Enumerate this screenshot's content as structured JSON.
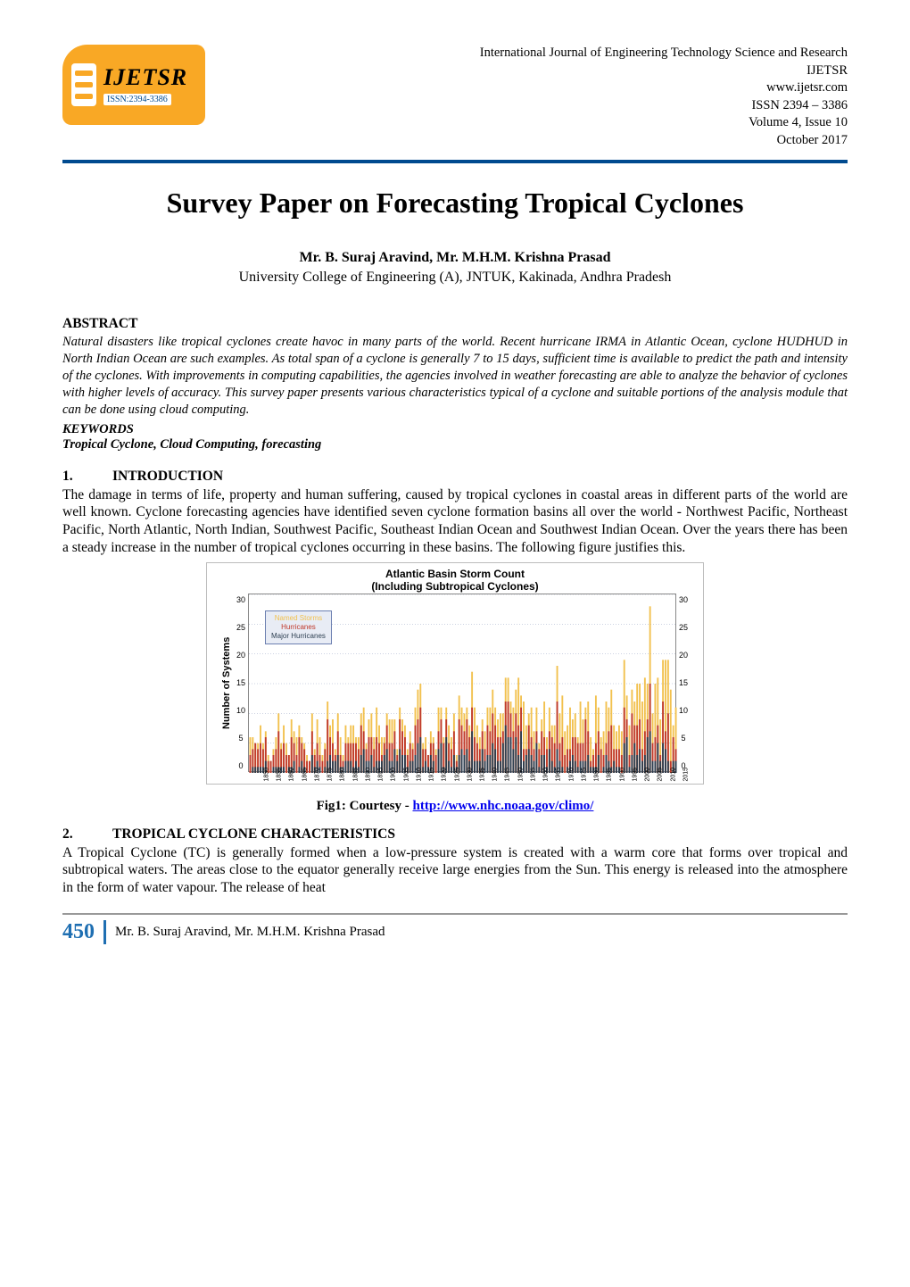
{
  "header": {
    "journal_name": "International Journal of Engineering Technology Science and Research",
    "journal_abbrev": "IJETSR",
    "website": "www.ijetsr.com",
    "issn_line": "ISSN 2394 – 3386",
    "volume_issue": "Volume 4, Issue 10",
    "date": "October 2017",
    "logo_big": "IJETSR",
    "logo_issn": "ISSN:2394-3386"
  },
  "title": "Survey Paper on Forecasting Tropical Cyclones",
  "authors": "Mr. B. Suraj Aravind, Mr. M.H.M. Krishna Prasad",
  "affiliation": "University College of Engineering (A), JNTUK, Kakinada, Andhra Pradesh",
  "abstract_heading": "ABSTRACT",
  "abstract_body": "Natural disasters like tropical cyclones create havoc in many parts of the world.  Recent hurricane IRMA in Atlantic Ocean, cyclone HUDHUD in North Indian Ocean are such examples.  As total span of a cyclone is generally 7 to 15 days, sufficient time is available to predict the path and intensity of the cyclones.  With improvements in computing capabilities, the agencies involved in weather forecasting are able to analyze the behavior of cyclones with higher levels of accuracy.   This survey paper presents various characteristics typical of a cyclone  and suitable portions of the analysis module that can be done using cloud computing.",
  "keywords_label": "KEYWORDS",
  "keywords": "Tropical Cyclone, Cloud Computing, forecasting",
  "section1": {
    "num": "1.",
    "title": "INTRODUCTION",
    "body": "The damage in terms of life, property and human suffering, caused by tropical cyclones in coastal areas in different parts of the world are well known.  Cyclone forecasting agencies have identified seven cyclone formation basins all over the world - Northwest Pacific, Northeast Pacific, North Atlantic, North Indian, Southwest Pacific, Southeast Indian Ocean and Southwest Indian Ocean.  Over the years there has been a steady increase in the number of tropical cyclones occurring in these basins.  The following figure justifies this."
  },
  "figure": {
    "chart_title_line1": "Atlantic Basin Storm Count",
    "chart_title_line2": "(Including Subtropical Cyclones)",
    "ylabel": "Number of Systems",
    "ylim": [
      0,
      30
    ],
    "yticks": [
      0,
      5,
      10,
      15,
      20,
      25,
      30
    ],
    "x_start": 1850,
    "x_end": 2015,
    "x_step": 5,
    "legend": [
      {
        "label": "Named Storms",
        "color": "#f2c14e"
      },
      {
        "label": "Hurricanes",
        "color": "#c0392b"
      },
      {
        "label": "Major Hurricanes",
        "color": "#2c3e50"
      }
    ],
    "background_color": "#ffffff",
    "grid_color": "#9aa7c7",
    "grid_dash": "1 2",
    "bar_width_ratio": 0.65,
    "named_storms": [
      6,
      6,
      5,
      5,
      8,
      5,
      7,
      3,
      2,
      4,
      6,
      10,
      5,
      8,
      5,
      3,
      9,
      7,
      6,
      8,
      6,
      5,
      3,
      2,
      10,
      4,
      9,
      6,
      3,
      5,
      12,
      8,
      9,
      4,
      10,
      6,
      3,
      8,
      6,
      8,
      8,
      6,
      6,
      10,
      11,
      5,
      9,
      10,
      6,
      11,
      8,
      6,
      6,
      10,
      9,
      9,
      9,
      4,
      11,
      9,
      8,
      4,
      7,
      5,
      11,
      14,
      15,
      5,
      6,
      3,
      7,
      6,
      4,
      11,
      11,
      6,
      11,
      8,
      6,
      10,
      3,
      13,
      11,
      10,
      11,
      8,
      17,
      11,
      8,
      6,
      9,
      7,
      11,
      11,
      14,
      11,
      9,
      10,
      10,
      16,
      16,
      12,
      11,
      14,
      16,
      13,
      12,
      8,
      10,
      11,
      7,
      11,
      5,
      9,
      12,
      6,
      11,
      8,
      8,
      18,
      10,
      13,
      7,
      8,
      11,
      9,
      10,
      6,
      12,
      9,
      11,
      12,
      6,
      4,
      13,
      11,
      6,
      7,
      12,
      11,
      14,
      8,
      7,
      8,
      7,
      19,
      13,
      8,
      14,
      12,
      15,
      15,
      12,
      16,
      15,
      28,
      10,
      15,
      16,
      9,
      19,
      19,
      19,
      14,
      8,
      11
    ],
    "hurricanes": [
      3,
      4,
      5,
      4,
      5,
      4,
      6,
      2,
      2,
      3,
      4,
      7,
      4,
      5,
      3,
      3,
      6,
      5,
      3,
      6,
      5,
      4,
      2,
      2,
      7,
      3,
      5,
      3,
      2,
      4,
      9,
      6,
      5,
      3,
      7,
      3,
      2,
      5,
      5,
      5,
      5,
      5,
      4,
      8,
      7,
      4,
      6,
      6,
      4,
      6,
      5,
      3,
      5,
      8,
      5,
      5,
      7,
      3,
      9,
      7,
      6,
      3,
      5,
      4,
      8,
      9,
      11,
      4,
      4,
      3,
      5,
      5,
      3,
      7,
      9,
      5,
      9,
      5,
      4,
      7,
      2,
      9,
      8,
      7,
      9,
      6,
      11,
      6,
      5,
      4,
      7,
      4,
      8,
      7,
      10,
      8,
      6,
      6,
      7,
      12,
      12,
      10,
      7,
      10,
      8,
      11,
      4,
      4,
      8,
      6,
      4,
      7,
      4,
      7,
      6,
      4,
      7,
      6,
      5,
      12,
      5,
      6,
      3,
      4,
      4,
      6,
      6,
      5,
      5,
      5,
      9,
      7,
      2,
      3,
      5,
      7,
      4,
      3,
      5,
      7,
      8,
      4,
      4,
      4,
      3,
      11,
      9,
      3,
      10,
      8,
      8,
      9,
      4,
      7,
      9,
      15,
      5,
      6,
      8,
      3,
      12,
      7,
      10,
      2,
      6,
      4
    ],
    "major_hurricanes": [
      0,
      1,
      1,
      1,
      1,
      1,
      2,
      0,
      0,
      1,
      1,
      1,
      1,
      1,
      0,
      1,
      1,
      2,
      0,
      1,
      2,
      1,
      0,
      0,
      3,
      1,
      2,
      1,
      0,
      1,
      2,
      3,
      2,
      2,
      3,
      1,
      1,
      2,
      2,
      2,
      1,
      2,
      1,
      3,
      4,
      2,
      2,
      3,
      1,
      2,
      2,
      2,
      3,
      4,
      2,
      2,
      4,
      2,
      4,
      3,
      3,
      1,
      2,
      2,
      3,
      5,
      6,
      1,
      2,
      1,
      3,
      2,
      0,
      4,
      5,
      1,
      6,
      2,
      1,
      3,
      1,
      3,
      4,
      3,
      4,
      2,
      7,
      2,
      2,
      2,
      4,
      2,
      3,
      3,
      5,
      4,
      2,
      2,
      5,
      8,
      6,
      6,
      4,
      6,
      3,
      7,
      2,
      3,
      4,
      3,
      2,
      5,
      1,
      3,
      3,
      1,
      4,
      2,
      1,
      4,
      2,
      1,
      0,
      1,
      2,
      3,
      2,
      1,
      2,
      2,
      2,
      3,
      1,
      1,
      1,
      3,
      0,
      1,
      3,
      2,
      1,
      2,
      1,
      1,
      0,
      5,
      6,
      1,
      3,
      5,
      3,
      4,
      2,
      3,
      6,
      7,
      2,
      2,
      5,
      2,
      5,
      4,
      2,
      0,
      2,
      2
    ],
    "caption_prefix": "Fig1: Courtesy - ",
    "caption_link": "http://www.nhc.noaa.gov/climo/"
  },
  "section2": {
    "num": "2.",
    "title": "TROPICAL CYCLONE CHARACTERISTICS",
    "body": "A Tropical Cyclone (TC) is generally formed when a low-pressure system is created with a warm core that forms over tropical and subtropical waters. The areas close to the equator generally receive large energies from the Sun.  This energy is released into the atmosphere in the form of water vapour.  The release of heat"
  },
  "footer": {
    "page_num": "450",
    "authors": "Mr. B. Suraj Aravind, Mr. M.H.M. Krishna Prasad"
  },
  "colors": {
    "header_rule": "#004a8f",
    "logo_bg": "#f9a825",
    "page_num": "#1f6fb2",
    "link": "#0000ee",
    "footer_rule": "#999999"
  }
}
